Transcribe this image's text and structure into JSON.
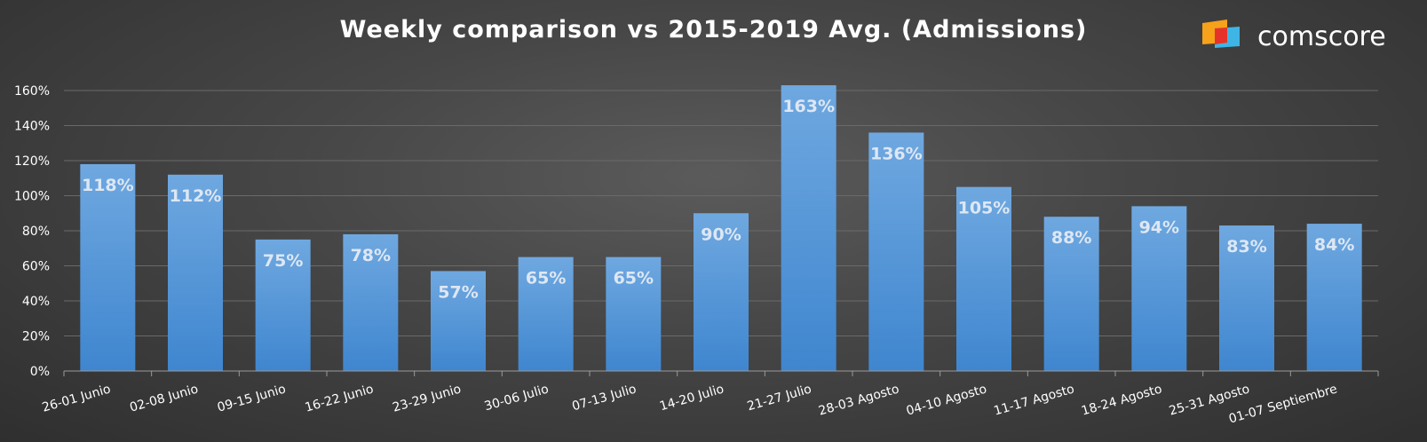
{
  "header": {
    "title": "Weekly comparison vs 2015-2019 Avg. (Admissions)",
    "brand_name": "comscore"
  },
  "colors": {
    "bar_top": "#6fa8e0",
    "bar_bottom": "#3f86cf",
    "gridline": "#6a6a6a",
    "axis": "#9a9a9a",
    "logo_orange": "#f6a21b",
    "logo_red": "#e6332a",
    "logo_blue": "#3fb5e5"
  },
  "icons": {
    "brand_logo": "comscore-logo-icon"
  },
  "chart_data": {
    "type": "bar",
    "title": "Weekly comparison vs 2015-2019 Avg. (Admissions)",
    "xlabel": "",
    "ylabel": "",
    "ylim": [
      0,
      1.6
    ],
    "yticks": [
      0,
      0.2,
      0.4,
      0.6,
      0.8,
      1.0,
      1.2,
      1.4,
      1.6
    ],
    "ytick_labels": [
      "0%",
      "20%",
      "40%",
      "60%",
      "80%",
      "100%",
      "120%",
      "140%",
      "160%"
    ],
    "grid": true,
    "legend": "none",
    "categories": [
      "26-01 Junio",
      "02-08 Junio",
      "09-15 Junio",
      "16-22 Junio",
      "23-29 Junio",
      "30-06 Julio",
      "07-13 Julio",
      "14-20 Julio",
      "21-27 Julio",
      "28-03 Agosto",
      "04-10 Agosto",
      "11-17 Agosto",
      "18-24 Agosto",
      "25-31 Agosto",
      "01-07 Septiembre"
    ],
    "values": [
      1.18,
      1.12,
      0.75,
      0.78,
      0.57,
      0.65,
      0.65,
      0.9,
      1.63,
      1.36,
      1.05,
      0.88,
      0.94,
      0.83,
      0.84
    ],
    "data_labels": [
      "118%",
      "112%",
      "75%",
      "78%",
      "57%",
      "65%",
      "65%",
      "90%",
      "163%",
      "136%",
      "105%",
      "88%",
      "94%",
      "83%",
      "84%"
    ]
  }
}
